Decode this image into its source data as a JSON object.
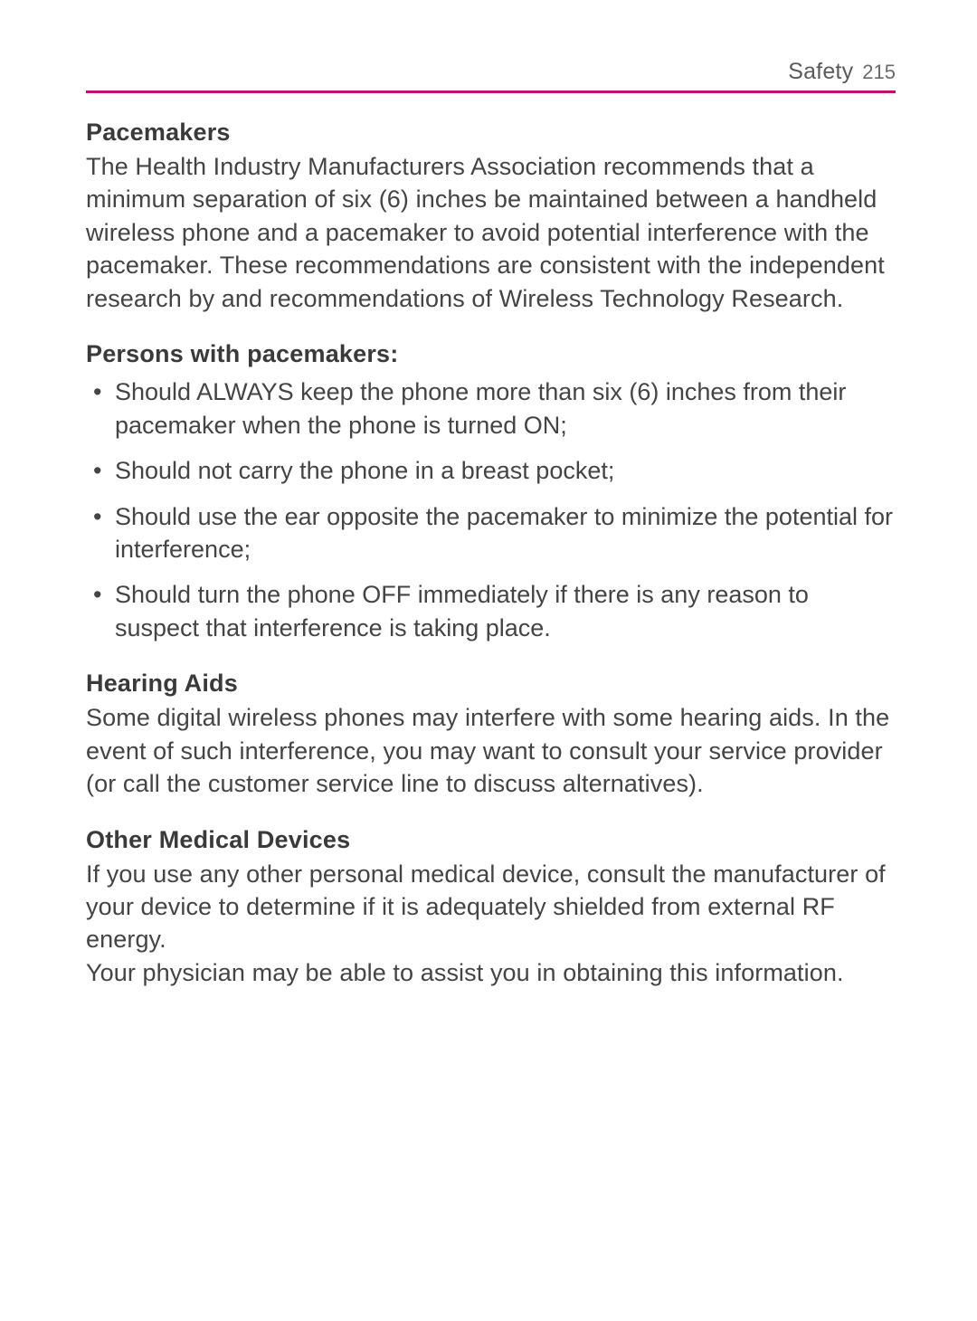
{
  "colors": {
    "header_rule": "#c4106d",
    "text": "#444444",
    "heading": "#3a3a3a",
    "header_title": "#5a5a5a",
    "header_page": "#6a6a6a",
    "background": "#ffffff"
  },
  "typography": {
    "body_fontsize_pt": 20,
    "heading_fontsize_pt": 20,
    "header_title_fontsize_pt": 19,
    "header_page_fontsize_pt": 17,
    "line_height": 1.35
  },
  "header": {
    "section": "Safety",
    "page_number": "215"
  },
  "sections": [
    {
      "heading": "Pacemakers",
      "paragraphs": [
        "The Health Industry Manufacturers Association recommends that a minimum separation of six (6) inches be maintained between a handheld wireless phone and a pacemaker to avoid potential interference with the pacemaker. These recommendations are consistent with the independent research by and recommendations of Wireless Technology Research."
      ]
    },
    {
      "heading": "Persons with pacemakers:",
      "bullets": [
        "Should ALWAYS keep the phone more than six (6) inches from their pacemaker when the phone is turned ON;",
        "Should not carry the phone in a breast pocket;",
        "Should use the ear opposite the pacemaker to minimize the potential for interference;",
        "Should turn the phone OFF immediately if there is any reason to suspect that interference is taking place."
      ]
    },
    {
      "heading": "Hearing Aids",
      "paragraphs": [
        "Some digital wireless phones may interfere with some hearing aids. In the event of such interference, you may want to consult your service provider (or call the customer service line to discuss alternatives)."
      ]
    },
    {
      "heading": "Other Medical Devices",
      "paragraphs": [
        "If you use any other personal medical device, consult the manufacturer of your device to determine if it is adequately shielded from external RF energy.",
        "Your physician may be able to assist you in obtaining this information."
      ]
    }
  ]
}
